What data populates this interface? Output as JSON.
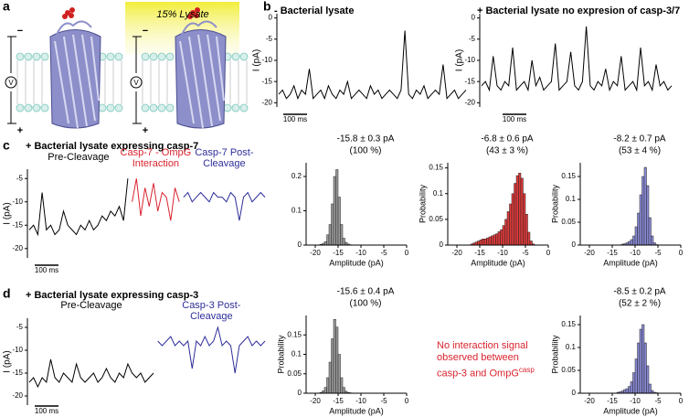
{
  "panel_labels": [
    "a",
    "b",
    "c",
    "d"
  ],
  "illustration": {
    "lysate_label": "15% Lysate",
    "voltage_symbol": "V",
    "plus": "+",
    "minus": "−"
  },
  "note": {
    "lines": [
      "No interaction signal",
      "observed between",
      "casp-3 and OmpG"
    ],
    "superscript": "casp"
  },
  "chart_data": [
    {
      "type": "trace",
      "title": "- Bacterial lysate",
      "ylabel": "I (pA)",
      "ylim": [
        -21,
        1
      ],
      "yticks": [
        0,
        -5,
        -10,
        -15,
        -20
      ],
      "scale_label": "100 ms",
      "color": "#000000",
      "values": [
        -18,
        -17,
        -19,
        -18,
        -16,
        -19,
        -17,
        -18,
        -12,
        -19,
        -18,
        -17,
        -19,
        -16,
        -18,
        -19,
        -17,
        -18,
        -15,
        -19,
        -18,
        -17,
        -18,
        -19,
        -16,
        -18,
        -17,
        -19,
        -18,
        -17,
        -18,
        -19,
        -17,
        -3,
        -18,
        -19,
        -17,
        -18,
        -16,
        -19,
        -18,
        -17,
        -18,
        -11,
        -19,
        -18,
        -17,
        -19,
        -18,
        -17
      ]
    },
    {
      "type": "trace",
      "title": "+ Bacterial lysate no expresion of casp-3/7",
      "ylabel": "I (pA)",
      "ylim": [
        -21,
        1
      ],
      "yticks": [
        0,
        -5,
        -10,
        -15,
        -20
      ],
      "scale_label": "100 ms",
      "color": "#000000",
      "values": [
        -16,
        -15,
        -17,
        -9,
        -16,
        -17,
        -15,
        -16,
        -7,
        -17,
        -16,
        -15,
        -17,
        -10,
        -16,
        -14,
        -17,
        -16,
        -15,
        -6,
        -17,
        -16,
        -15,
        -8,
        -16,
        -17,
        -15,
        -2,
        -16,
        -17,
        -15,
        -16,
        -12,
        -17,
        -15,
        -16,
        -9,
        -17,
        -16,
        -15,
        -17,
        -7,
        -16,
        -15,
        -17,
        -11,
        -16,
        -15,
        -17,
        -16
      ]
    },
    {
      "type": "trace",
      "title": "+ Bacterial lysate expressing casp-7",
      "ylabel": "I (pA)",
      "ylim": [
        -22,
        -3
      ],
      "yticks": [
        -5,
        -10,
        -15,
        -20
      ],
      "scale_label": "100 ms",
      "series": [
        {
          "name": "Pre-Cleavage",
          "color": "#000000",
          "values": [
            -16,
            -15,
            -17,
            -8,
            -16,
            -15,
            -17,
            -16,
            -12,
            -15,
            -16,
            -17,
            -15,
            -16,
            -14,
            -16,
            -15,
            -13,
            -14,
            -12,
            -13,
            -11,
            -14,
            -5
          ]
        },
        {
          "name": "Casp-7 - OmpG Interaction",
          "color": "#d9232e",
          "values": [
            -10,
            -5,
            -13,
            -7,
            -11,
            -6,
            -12,
            -8,
            -9,
            -14,
            -7,
            -10
          ]
        },
        {
          "name": "Casp-7 Post-Cleavage",
          "color": "#2e2e9a",
          "values": [
            -9,
            -8,
            -10,
            -9,
            -8,
            -9,
            -10,
            -8,
            -9,
            -9,
            -10,
            -8,
            -9,
            -14,
            -9,
            -8,
            -10,
            -9,
            -8,
            -9
          ]
        }
      ]
    },
    {
      "type": "histogram",
      "title": "-15.8 ± 0.3 pA",
      "subtitle": "(100 %)",
      "xlabel": "Amplitude (pA)",
      "color": "#9a9a9a",
      "xlim": [
        -22,
        0
      ],
      "xticks": [
        -20,
        -15,
        -10,
        -5,
        0
      ],
      "ylim": [
        0,
        0.24
      ],
      "yticks": [
        0,
        0.1,
        0.2
      ],
      "bins": [
        -19,
        -18.5,
        -18,
        -17.5,
        -17,
        -16.5,
        -16,
        -15.5,
        -15,
        -14.5,
        -14,
        -13.5,
        -13,
        -12.5,
        -12
      ],
      "values": [
        0.002,
        0.005,
        0.01,
        0.03,
        0.06,
        0.12,
        0.2,
        0.22,
        0.14,
        0.06,
        0.02,
        0.008,
        0.003,
        0.001
      ]
    },
    {
      "type": "histogram",
      "title": "-6.8 ± 0.6 pA",
      "subtitle": "(43 ± 3 %)",
      "xlabel": "Amplitude (pA)",
      "ylabel": "Probability",
      "color": "#e03a3a",
      "xlim": [
        -22,
        0
      ],
      "xticks": [
        -20,
        -15,
        -10,
        -5,
        0
      ],
      "ylim": [
        0,
        0.16
      ],
      "yticks": [
        0,
        0.05,
        0.1,
        0.15
      ],
      "bins": [
        -17,
        -16.5,
        -16,
        -15.5,
        -15,
        -14.5,
        -14,
        -13.5,
        -13,
        -12.5,
        -12,
        -11.5,
        -11,
        -10.5,
        -10,
        -9.5,
        -9,
        -8.5,
        -8,
        -7.5,
        -7,
        -6.5,
        -6,
        -5.5,
        -5,
        -4.5,
        -4,
        -3.5,
        -3
      ],
      "values": [
        0.002,
        0.004,
        0.006,
        0.008,
        0.01,
        0.012,
        0.012,
        0.014,
        0.016,
        0.018,
        0.02,
        0.022,
        0.026,
        0.03,
        0.038,
        0.05,
        0.065,
        0.08,
        0.1,
        0.12,
        0.135,
        0.14,
        0.13,
        0.1,
        0.06,
        0.025,
        0.008,
        0.002
      ]
    },
    {
      "type": "histogram",
      "title": "-8.2 ± 0.7 pA",
      "subtitle": "(53 ± 4 %)",
      "xlabel": "Amplitude (pA)",
      "ylabel": "Probability",
      "color": "#8a8ad6",
      "xlim": [
        -22,
        0
      ],
      "xticks": [
        -20,
        -15,
        -10,
        -5,
        0
      ],
      "ylim": [
        0,
        0.18
      ],
      "yticks": [
        0,
        0.05,
        0.1,
        0.15
      ],
      "bins": [
        -13,
        -12.5,
        -12,
        -11.5,
        -11,
        -10.5,
        -10,
        -9.5,
        -9,
        -8.5,
        -8,
        -7.5,
        -7,
        -6.5,
        -6,
        -5.5,
        -5
      ],
      "values": [
        0.002,
        0.003,
        0.005,
        0.008,
        0.012,
        0.02,
        0.04,
        0.07,
        0.11,
        0.15,
        0.17,
        0.13,
        0.06,
        0.02,
        0.005,
        0.001
      ]
    },
    {
      "type": "trace",
      "title": "+ Bacterial lysate expressing casp-3",
      "ylabel": "I (pA)",
      "ylim": [
        -22,
        -3
      ],
      "yticks": [
        -5,
        -10,
        -15,
        -20
      ],
      "scale_label": "100 ms",
      "series": [
        {
          "name": "Pre-Cleavage",
          "color": "#000000",
          "values": [
            -17,
            -16,
            -18,
            -16,
            -17,
            -12,
            -16,
            -17,
            -15,
            -16,
            -17,
            -13,
            -16,
            -17,
            -16,
            -15,
            -17,
            -16,
            -14,
            -16,
            -17,
            -15,
            -16,
            -13,
            -15,
            -16,
            -15,
            -17,
            -16,
            -15
          ]
        },
        {
          "name": "Casp-3 Post-Cleavage",
          "color": "#2e2e9a",
          "values": [
            -8,
            -9,
            -8,
            -7,
            -9,
            -8,
            -9,
            -8,
            -14,
            -8,
            -9,
            -7,
            -9,
            -8,
            -5,
            -9,
            -8,
            -9,
            -15,
            -9,
            -8,
            -7,
            -9,
            -8,
            -9,
            -8
          ]
        }
      ]
    },
    {
      "type": "histogram",
      "title": "-15.6 ± 0.4 pA",
      "subtitle": "(100 %)",
      "xlabel": "Amplitude (pA)",
      "ylabel": "Probability",
      "color": "#9a9a9a",
      "xlim": [
        -22,
        0
      ],
      "xticks": [
        -20,
        -15,
        -10,
        -5,
        0
      ],
      "ylim": [
        0,
        0.2
      ],
      "yticks": [
        0,
        0.05,
        0.1,
        0.15
      ],
      "bins": [
        -19,
        -18.5,
        -18,
        -17.5,
        -17,
        -16.5,
        -16,
        -15.5,
        -15,
        -14.5,
        -14,
        -13.5,
        -13,
        -12.5,
        -12
      ],
      "values": [
        0.002,
        0.006,
        0.015,
        0.04,
        0.08,
        0.14,
        0.19,
        0.17,
        0.1,
        0.04,
        0.015,
        0.005,
        0.002,
        0.001
      ]
    },
    {
      "type": "histogram",
      "title": "-8.5 ± 0.2 pA",
      "subtitle": "(52 ± 2 %)",
      "xlabel": "Amplitude (pA)",
      "ylabel": "Probability",
      "color": "#8a8ad6",
      "xlim": [
        -22,
        0
      ],
      "xticks": [
        -20,
        -15,
        -10,
        -5,
        0
      ],
      "ylim": [
        0,
        0.17
      ],
      "yticks": [
        0,
        0.05,
        0.1,
        0.15
      ],
      "bins": [
        -14,
        -13.5,
        -13,
        -12.5,
        -12,
        -11.5,
        -11,
        -10.5,
        -10,
        -9.5,
        -9,
        -8.5,
        -8,
        -7.5,
        -7,
        -6.5,
        -6,
        -5.5,
        -5
      ],
      "values": [
        0.002,
        0.003,
        0.005,
        0.008,
        0.01,
        0.015,
        0.025,
        0.045,
        0.075,
        0.11,
        0.14,
        0.15,
        0.11,
        0.06,
        0.02,
        0.006,
        0.002,
        0.001
      ]
    }
  ]
}
